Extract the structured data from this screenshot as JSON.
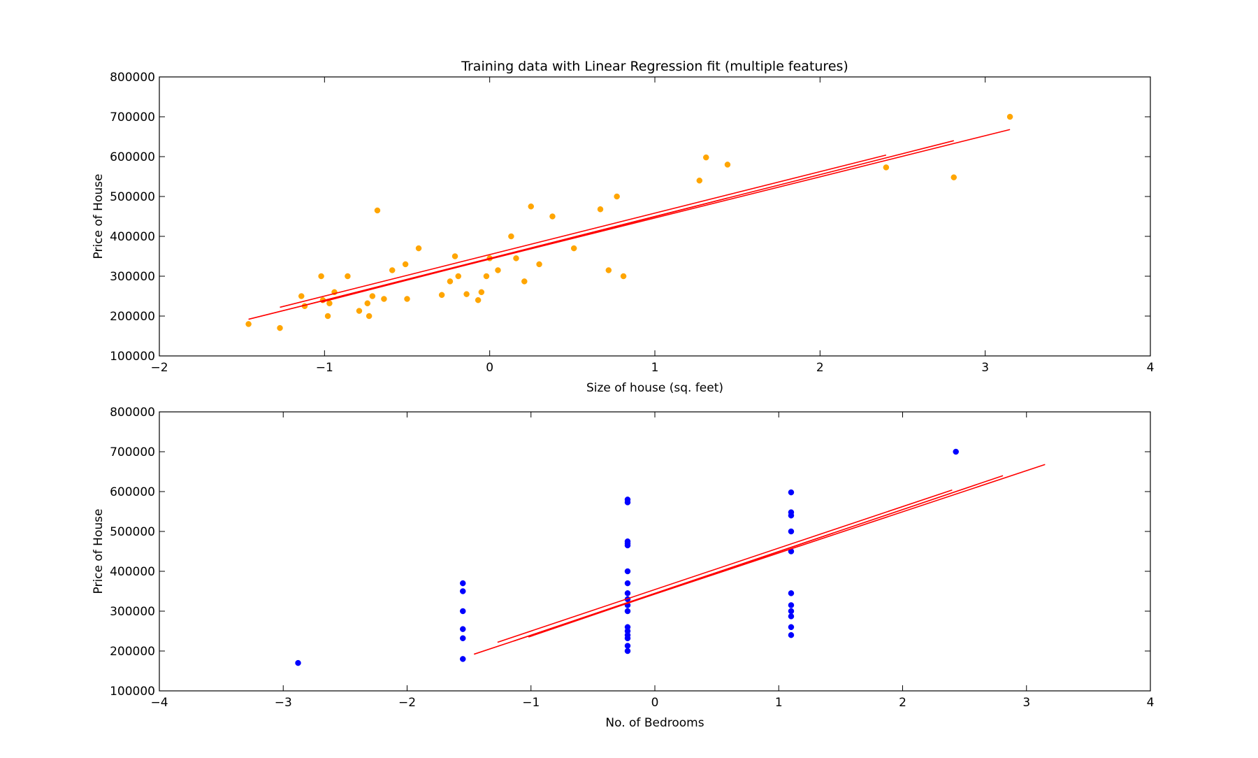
{
  "chart_data": [
    {
      "type": "scatter",
      "title": "Training data with Linear Regression fit (multiple features)",
      "xlabel": "Size of house (sq. feet)",
      "ylabel": "Price of House",
      "xlim": [
        -2,
        4
      ],
      "ylim": [
        100000,
        800000
      ],
      "xticks": [
        "−2",
        "−1",
        "0",
        "1",
        "2",
        "3",
        "4"
      ],
      "yticks": [
        "100000",
        "200000",
        "300000",
        "400000",
        "500000",
        "600000",
        "700000",
        "800000"
      ],
      "grid": false,
      "legend": "none",
      "series": [
        {
          "kind": "scatter",
          "color": "#ffa500",
          "points": [
            [
              -1.46,
              180000
            ],
            [
              -1.27,
              170000
            ],
            [
              -1.14,
              250000
            ],
            [
              -1.12,
              225000
            ],
            [
              -1.02,
              300000
            ],
            [
              -1.01,
              240000
            ],
            [
              -0.98,
              200000
            ],
            [
              -0.97,
              232000
            ],
            [
              -0.94,
              260000
            ],
            [
              -0.86,
              300000
            ],
            [
              -0.79,
              213000
            ],
            [
              -0.74,
              232000
            ],
            [
              -0.73,
              200000
            ],
            [
              -0.71,
              250000
            ],
            [
              -0.68,
              465000
            ],
            [
              -0.64,
              243000
            ],
            [
              -0.59,
              315000
            ],
            [
              -0.51,
              330000
            ],
            [
              -0.5,
              243000
            ],
            [
              -0.43,
              370000
            ],
            [
              -0.29,
              253000
            ],
            [
              -0.24,
              287000
            ],
            [
              -0.21,
              350000
            ],
            [
              -0.19,
              300000
            ],
            [
              -0.14,
              255000
            ],
            [
              -0.07,
              240000
            ],
            [
              -0.05,
              260000
            ],
            [
              -0.02,
              300000
            ],
            [
              0.0,
              345000
            ],
            [
              0.05,
              315000
            ],
            [
              0.13,
              400000
            ],
            [
              0.16,
              345000
            ],
            [
              0.21,
              287000
            ],
            [
              0.25,
              475000
            ],
            [
              0.3,
              330000
            ],
            [
              0.38,
              450000
            ],
            [
              0.51,
              370000
            ],
            [
              0.67,
              468000
            ],
            [
              0.72,
              315000
            ],
            [
              0.77,
              500000
            ],
            [
              0.81,
              300000
            ],
            [
              1.27,
              540000
            ],
            [
              1.31,
              598000
            ],
            [
              1.44,
              580000
            ],
            [
              2.4,
              573000
            ],
            [
              2.81,
              548000
            ],
            [
              3.15,
              700000
            ]
          ]
        },
        {
          "kind": "line",
          "color": "#ff0000",
          "segments": [
            [
              [
                -1.46,
                192000
              ],
              [
                3.15,
                668000
              ]
            ],
            [
              [
                -1.27,
                222000
              ],
              [
                2.4,
                604000
              ]
            ],
            [
              [
                -1.14,
                225000
              ],
              [
                2.81,
                640000
              ]
            ],
            [
              [
                -1.02,
                235000
              ],
              [
                1.44,
                496000
              ]
            ]
          ]
        }
      ]
    },
    {
      "type": "scatter",
      "title": "",
      "xlabel": "No. of Bedrooms",
      "ylabel": "Price of House",
      "xlim": [
        -4,
        4
      ],
      "ylim": [
        100000,
        800000
      ],
      "xticks": [
        "−4",
        "−3",
        "−2",
        "−1",
        "0",
        "1",
        "2",
        "3",
        "4"
      ],
      "yticks": [
        "100000",
        "200000",
        "300000",
        "400000",
        "500000",
        "600000",
        "700000",
        "800000"
      ],
      "grid": false,
      "legend": "none",
      "series": [
        {
          "kind": "scatter",
          "color": "#0000ff",
          "points": [
            [
              -2.88,
              170000
            ],
            [
              -1.55,
              180000
            ],
            [
              -1.55,
              232000
            ],
            [
              -1.55,
              255000
            ],
            [
              -1.55,
              300000
            ],
            [
              -1.55,
              350000
            ],
            [
              -1.55,
              370000
            ],
            [
              -0.22,
              200000
            ],
            [
              -0.22,
              213000
            ],
            [
              -0.22,
              232000
            ],
            [
              -0.22,
              240000
            ],
            [
              -0.22,
              250000
            ],
            [
              -0.22,
              260000
            ],
            [
              -0.22,
              300000
            ],
            [
              -0.22,
              315000
            ],
            [
              -0.22,
              330000
            ],
            [
              -0.22,
              345000
            ],
            [
              -0.22,
              370000
            ],
            [
              -0.22,
              400000
            ],
            [
              -0.22,
              465000
            ],
            [
              -0.22,
              470000
            ],
            [
              -0.22,
              475000
            ],
            [
              -0.22,
              573000
            ],
            [
              -0.22,
              580000
            ],
            [
              1.1,
              240000
            ],
            [
              1.1,
              260000
            ],
            [
              1.1,
              287000
            ],
            [
              1.1,
              300000
            ],
            [
              1.1,
              315000
            ],
            [
              1.1,
              345000
            ],
            [
              1.1,
              450000
            ],
            [
              1.1,
              500000
            ],
            [
              1.1,
              540000
            ],
            [
              1.1,
              548000
            ],
            [
              1.1,
              598000
            ],
            [
              2.43,
              700000
            ]
          ]
        },
        {
          "kind": "line",
          "color": "#ff0000",
          "segments": [
            [
              [
                -1.46,
                192000
              ],
              [
                3.15,
                668000
              ]
            ],
            [
              [
                -1.27,
                222000
              ],
              [
                2.4,
                604000
              ]
            ],
            [
              [
                -1.14,
                225000
              ],
              [
                2.81,
                640000
              ]
            ],
            [
              [
                -1.02,
                235000
              ],
              [
                1.44,
                496000
              ]
            ]
          ]
        }
      ]
    }
  ]
}
